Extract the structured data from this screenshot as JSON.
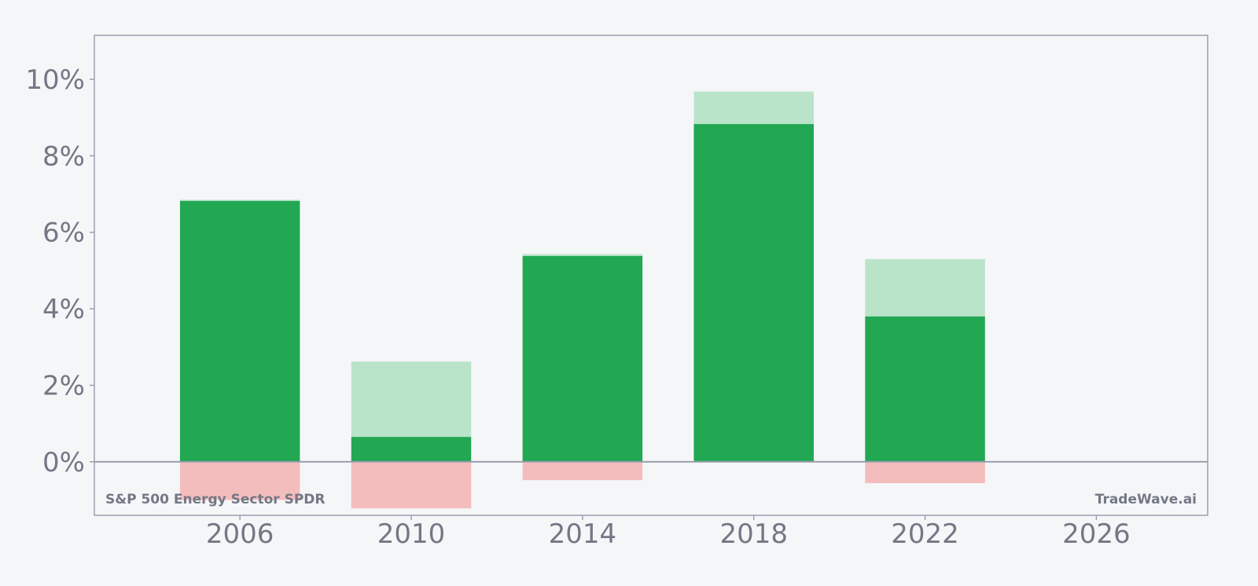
{
  "chart_data": {
    "type": "bar",
    "title": "",
    "xlabel": "",
    "ylabel": "",
    "x_ticks": [
      "2006",
      "2010",
      "2014",
      "2018",
      "2022",
      "2026"
    ],
    "y_ticks": [
      "0%",
      "2%",
      "4%",
      "6%",
      "8%",
      "10%"
    ],
    "xlim": [
      2002.6,
      2028.6
    ],
    "ylim": [
      -1.4,
      11.15
    ],
    "bar_width_years": 2.8,
    "grid": false,
    "legend": "none",
    "bars": [
      {
        "x": 2006,
        "base_high": 6.85,
        "value": 6.82,
        "low": -1.0
      },
      {
        "x": 2010,
        "base_high": 2.62,
        "value": 0.65,
        "low": -1.22
      },
      {
        "x": 2014,
        "base_high": 5.43,
        "value": 5.38,
        "low": -0.48
      },
      {
        "x": 2018,
        "base_high": 9.68,
        "value": 8.83,
        "low": 0.0
      },
      {
        "x": 2022,
        "base_high": 5.3,
        "value": 3.8,
        "low": -0.56
      }
    ],
    "annotations": {
      "left": "S&P 500 Energy Sector SPDR",
      "right": "TradeWave.ai"
    },
    "colors": {
      "value": "#22a753",
      "high": "#b9e4c9",
      "low": "#f4bdbd",
      "axis": "#9aa0ac",
      "text": "#737885"
    }
  }
}
